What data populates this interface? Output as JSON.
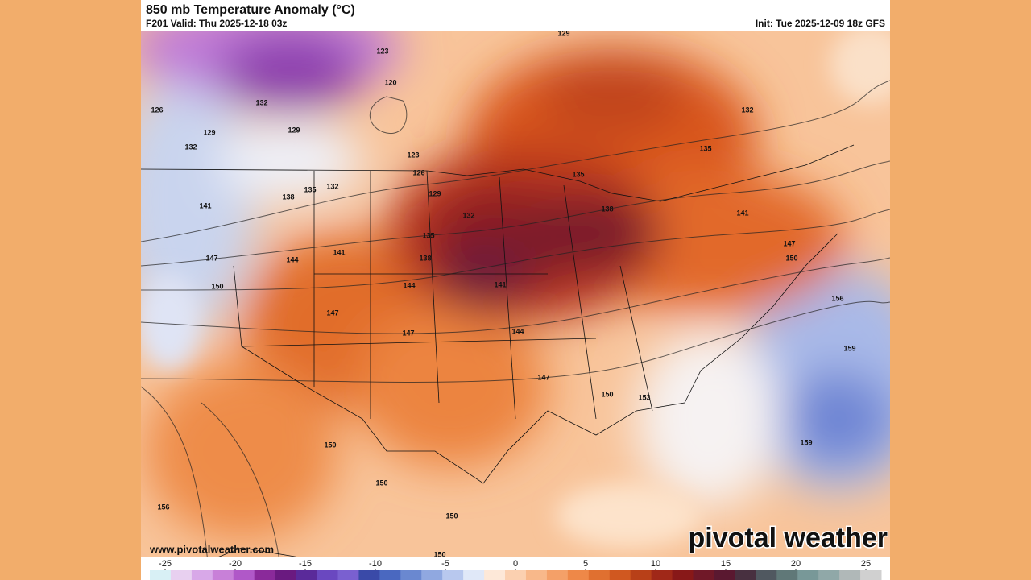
{
  "header": {
    "title": "850 mb Temperature Anomaly (°C)",
    "valid": "F201 Valid: Thu 2025-12-18 03z",
    "init": "Init: Tue 2025-12-09 18z GFS"
  },
  "map": {
    "contour_labels": [
      "129",
      "123",
      "120",
      "126",
      "132",
      "129",
      "132",
      "129",
      "123",
      "126",
      "135",
      "132",
      "138",
      "129",
      "141",
      "132",
      "135",
      "138",
      "135",
      "132",
      "141",
      "135",
      "138",
      "147",
      "144",
      "141",
      "147",
      "150",
      "150",
      "144",
      "141",
      "147",
      "147",
      "144",
      "156",
      "159",
      "147",
      "150",
      "153",
      "159",
      "150",
      "150",
      "156",
      "150",
      "150"
    ]
  },
  "footer": {
    "website": "www.pivotalweather.com",
    "brand": "pivotal weather"
  },
  "colorbar": {
    "ticks": [
      -25,
      -20,
      -15,
      -10,
      -5,
      0,
      5,
      10,
      15,
      20,
      25
    ]
  }
}
